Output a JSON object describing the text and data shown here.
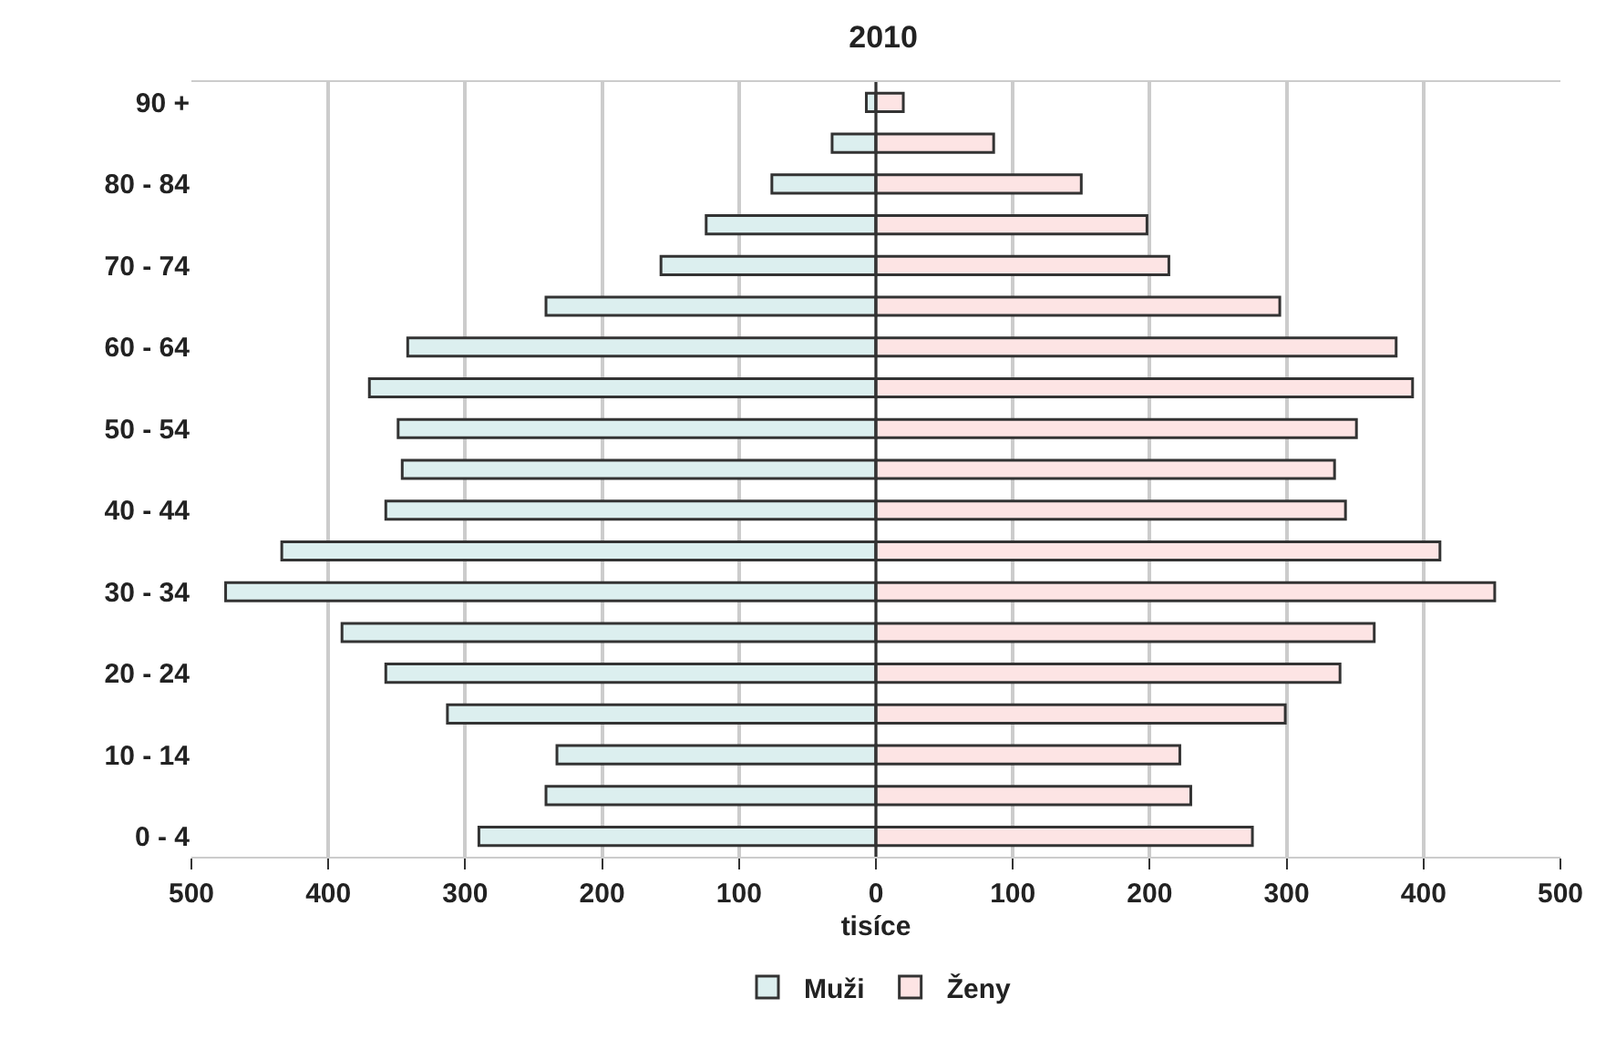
{
  "chart_data": {
    "type": "bar",
    "orientation": "horizontal",
    "title": "2010",
    "xlabel": "tisíce",
    "categories": [
      "90 +",
      null,
      "80 - 84",
      null,
      "70 - 74",
      null,
      "60 - 64",
      null,
      "50 - 54",
      null,
      "40 - 44",
      null,
      "30 - 34",
      null,
      "20 - 24",
      null,
      "10 - 14",
      null,
      "0 - 4"
    ],
    "series": [
      {
        "name": "Muži",
        "color": "#dcefef",
        "values": [
          -7,
          -32,
          -76,
          -124,
          -157,
          -241,
          -342,
          -370,
          -349,
          -346,
          -358,
          -434,
          -475,
          -390,
          -358,
          -313,
          -233,
          -241,
          -290
        ]
      },
      {
        "name": "Ženy",
        "color": "#fde4e4",
        "values": [
          20,
          86,
          150,
          198,
          214,
          295,
          380,
          392,
          351,
          335,
          343,
          412,
          452,
          364,
          339,
          299,
          222,
          230,
          275
        ]
      }
    ],
    "xlim": [
      -500,
      500
    ],
    "xticks": [
      {
        "value": -500,
        "label": "500"
      },
      {
        "value": -400,
        "label": "400"
      },
      {
        "value": -300,
        "label": "300"
      },
      {
        "value": -200,
        "label": "200"
      },
      {
        "value": -100,
        "label": "100"
      },
      0,
      100,
      200,
      300,
      400,
      500
    ],
    "grid": "x",
    "legend": "bottom",
    "stacked": true
  }
}
